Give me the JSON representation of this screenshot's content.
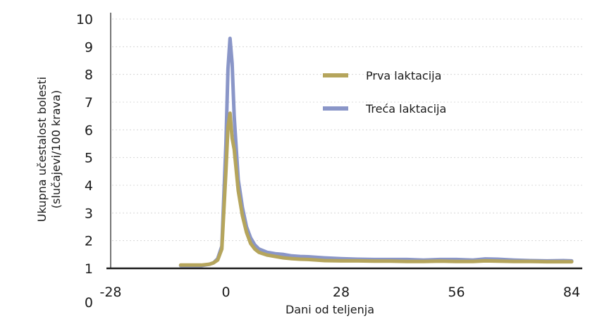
{
  "chart_data": {
    "type": "line",
    "title": "",
    "xlabel": "Dani od teljenja",
    "ylabel_lines": [
      "Ukupna učestalost bolesti",
      "(slučajevi/100 krava)"
    ],
    "xlim": [
      -28,
      84
    ],
    "ylim": [
      1,
      10
    ],
    "xticks": [
      "-28",
      "0",
      "28",
      "56",
      "84"
    ],
    "xtick_values": [
      -28,
      0,
      28,
      56,
      84
    ],
    "yticks": [
      "0",
      "1",
      "2",
      "3",
      "4",
      "5",
      "6",
      "7",
      "8",
      "9",
      "10"
    ],
    "ytick_values": [
      0,
      1,
      2,
      3,
      4,
      5,
      6,
      7,
      8,
      9,
      10
    ],
    "grid": "horizontal dotted",
    "legend_position": "upper-right",
    "series": [
      {
        "name": "Treća laktacija",
        "color": "#8a96c8",
        "x": [
          -11,
          -8,
          -6,
          -4,
          -3,
          -2,
          -1,
          0,
          0.5,
          1,
          1.5,
          2,
          3,
          4,
          5,
          6,
          7,
          8,
          10,
          12,
          14,
          16,
          18,
          20,
          24,
          28,
          32,
          36,
          40,
          44,
          48,
          52,
          56,
          60,
          63,
          66,
          70,
          74,
          78,
          82,
          84
        ],
        "values": [
          1.1,
          1.1,
          1.1,
          1.15,
          1.2,
          1.35,
          1.8,
          5.5,
          8.2,
          9.3,
          8.4,
          6.5,
          4.2,
          3.2,
          2.5,
          2.1,
          1.85,
          1.7,
          1.58,
          1.53,
          1.5,
          1.45,
          1.43,
          1.42,
          1.38,
          1.35,
          1.33,
          1.32,
          1.32,
          1.32,
          1.3,
          1.32,
          1.32,
          1.3,
          1.34,
          1.33,
          1.3,
          1.28,
          1.27,
          1.28,
          1.27
        ]
      },
      {
        "name": "Prva laktacija",
        "color": "#b5a55c",
        "x": [
          -11,
          -8,
          -6,
          -4,
          -3,
          -2,
          -1,
          0,
          0.5,
          1,
          1.5,
          2,
          3,
          4,
          5,
          6,
          7,
          8,
          10,
          12,
          14,
          16,
          18,
          20,
          24,
          28,
          32,
          36,
          40,
          44,
          48,
          52,
          56,
          60,
          63,
          66,
          70,
          74,
          78,
          82,
          84
        ],
        "values": [
          1.12,
          1.12,
          1.12,
          1.15,
          1.2,
          1.3,
          1.7,
          4.5,
          6.1,
          6.6,
          5.7,
          5.3,
          3.8,
          2.9,
          2.3,
          1.9,
          1.7,
          1.58,
          1.48,
          1.43,
          1.38,
          1.35,
          1.33,
          1.32,
          1.28,
          1.27,
          1.27,
          1.26,
          1.26,
          1.25,
          1.25,
          1.26,
          1.25,
          1.25,
          1.27,
          1.26,
          1.25,
          1.25,
          1.24,
          1.24,
          1.24
        ]
      }
    ],
    "legend": [
      {
        "label": "Prva laktacija",
        "color": "#b5a55c"
      },
      {
        "label": "Treća laktacija",
        "color": "#8a96c8"
      }
    ]
  }
}
